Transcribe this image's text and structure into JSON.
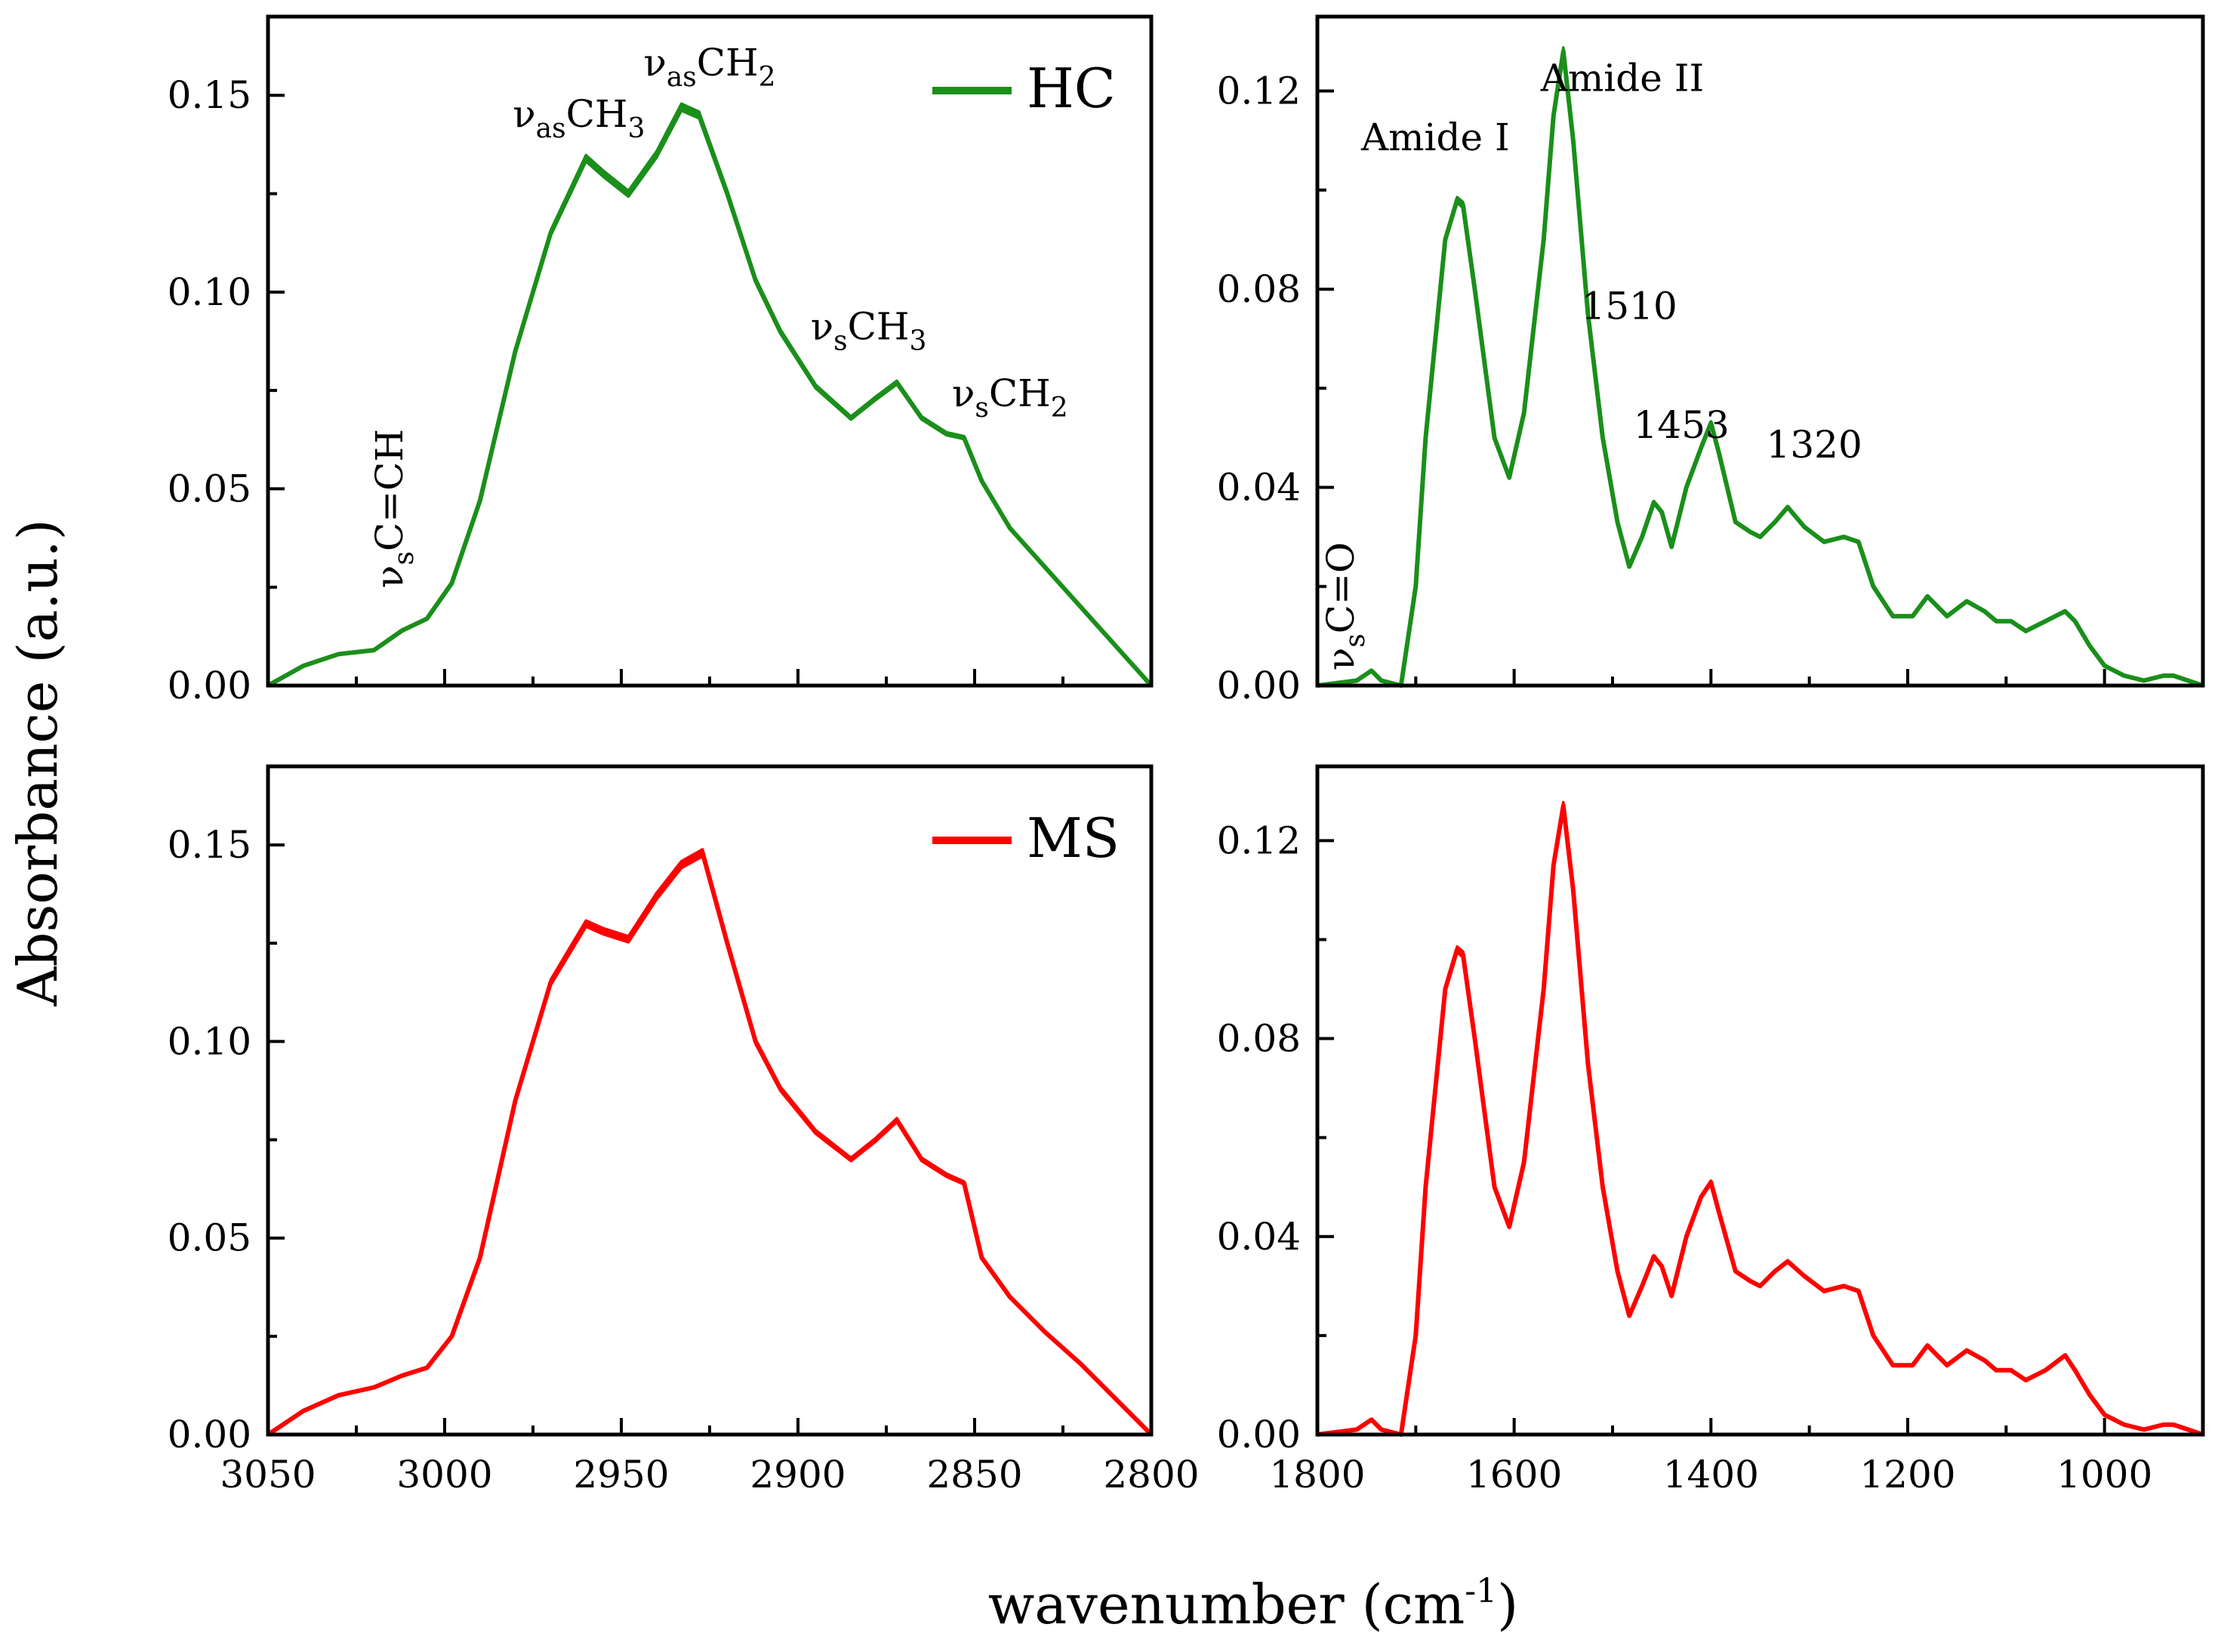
{
  "figure": {
    "ylabel": "Absorbance (a.u.)",
    "xlabel_main": "wavenumber (cm",
    "xlabel_sup": "-1",
    "xlabel_close": ")"
  },
  "colors": {
    "HC": "#1a8f1a",
    "MS": "#ff0000"
  },
  "chart_data": [
    {
      "id": "hc-ch",
      "type": "line",
      "title": "",
      "xlim": [
        3050,
        2800
      ],
      "ylim": [
        0,
        0.17
      ],
      "xticks": [
        3050,
        3000,
        2950,
        2900,
        2850,
        2800
      ],
      "yticks": [
        0.0,
        0.05,
        0.1,
        0.15
      ],
      "ytick_labels": [
        "0.00",
        "0.05",
        "0.10",
        "0.15"
      ],
      "show_xtick_labels": false,
      "legend": {
        "label": "HC",
        "position": "top-right"
      },
      "series": [
        {
          "name": "HC",
          "x": [
            3050,
            3040,
            3030,
            3020,
            3012,
            3005,
            2998,
            2990,
            2980,
            2970,
            2960,
            2955,
            2948,
            2940,
            2933,
            2928,
            2920,
            2912,
            2905,
            2895,
            2885,
            2878,
            2872,
            2865,
            2858,
            2853,
            2848,
            2840,
            2830,
            2820,
            2810,
            2800
          ],
          "y": [
            0.0,
            0.005,
            0.008,
            0.009,
            0.014,
            0.017,
            0.026,
            0.047,
            0.085,
            0.115,
            0.134,
            0.13,
            0.125,
            0.135,
            0.147,
            0.145,
            0.125,
            0.103,
            0.09,
            0.076,
            0.068,
            0.073,
            0.077,
            0.068,
            0.064,
            0.063,
            0.052,
            0.04,
            0.03,
            0.02,
            0.01,
            0.0
          ]
        }
      ],
      "annotations": [
        {
          "base": "ν",
          "sub": "s",
          "rest": "C=CH",
          "x": 3012,
          "y": 0.045,
          "rotated": true
        },
        {
          "base": "ν",
          "sub": "as",
          "rest": "CH",
          "sub2": "3",
          "x": 2962,
          "y": 0.142,
          "rotated": false
        },
        {
          "base": "ν",
          "sub": "as",
          "rest": "CH",
          "sub2": "2",
          "x": 2925,
          "y": 0.155,
          "rotated": false
        },
        {
          "base": "ν",
          "sub": "s",
          "rest": "CH",
          "sub2": "3",
          "x": 2880,
          "y": 0.088,
          "rotated": false
        },
        {
          "base": "ν",
          "sub": "s",
          "rest": "CH",
          "sub2": "2",
          "x": 2840,
          "y": 0.071,
          "rotated": false
        }
      ]
    },
    {
      "id": "hc-amide",
      "type": "line",
      "title": "",
      "xlim": [
        1800,
        900
      ],
      "ylim": [
        0,
        0.135
      ],
      "xticks": [
        1800,
        1600,
        1400,
        1200,
        1000
      ],
      "yticks": [
        0.0,
        0.04,
        0.08,
        0.12
      ],
      "ytick_labels": [
        "0.00",
        "0.04",
        "0.08",
        "0.12"
      ],
      "show_xtick_labels": false,
      "series": [
        {
          "name": "HC",
          "x": [
            1800,
            1760,
            1745,
            1735,
            1715,
            1700,
            1690,
            1670,
            1658,
            1652,
            1640,
            1620,
            1605,
            1590,
            1570,
            1560,
            1550,
            1540,
            1525,
            1510,
            1495,
            1483,
            1470,
            1458,
            1450,
            1440,
            1425,
            1410,
            1400,
            1392,
            1375,
            1360,
            1350,
            1335,
            1322,
            1305,
            1285,
            1265,
            1250,
            1235,
            1215,
            1195,
            1180,
            1170,
            1160,
            1140,
            1122,
            1110,
            1095,
            1080,
            1060,
            1040,
            1030,
            1015,
            1000,
            980,
            960,
            940,
            930,
            900
          ],
          "y": [
            0.0,
            0.001,
            0.003,
            0.001,
            0.0,
            0.02,
            0.05,
            0.09,
            0.098,
            0.097,
            0.08,
            0.05,
            0.042,
            0.055,
            0.09,
            0.115,
            0.128,
            0.11,
            0.075,
            0.05,
            0.033,
            0.024,
            0.03,
            0.037,
            0.035,
            0.028,
            0.04,
            0.048,
            0.053,
            0.047,
            0.033,
            0.031,
            0.03,
            0.033,
            0.036,
            0.032,
            0.029,
            0.03,
            0.029,
            0.02,
            0.014,
            0.014,
            0.018,
            0.016,
            0.014,
            0.017,
            0.015,
            0.013,
            0.013,
            0.011,
            0.013,
            0.015,
            0.013,
            0.008,
            0.004,
            0.002,
            0.001,
            0.002,
            0.002,
            0.0
          ]
        }
      ],
      "annotations": [
        {
          "text": "Amide I",
          "x": 1680,
          "y": 0.108,
          "rotated": false
        },
        {
          "text": "Amide II",
          "x": 1490,
          "y": 0.12,
          "rotated": false
        },
        {
          "text": "1510",
          "x": 1483,
          "y": 0.074,
          "rotated": false
        },
        {
          "text": "1453",
          "x": 1430,
          "y": 0.05,
          "rotated": false
        },
        {
          "text": "1320",
          "x": 1295,
          "y": 0.046,
          "rotated": false
        },
        {
          "base": "ν",
          "sub": "s",
          "rest": "C=O",
          "x": 1763,
          "y": 0.016,
          "rotated": true
        }
      ]
    },
    {
      "id": "ms-ch",
      "type": "line",
      "title": "",
      "xlim": [
        3050,
        2800
      ],
      "ylim": [
        0,
        0.17
      ],
      "xticks": [
        3050,
        3000,
        2950,
        2900,
        2850,
        2800
      ],
      "xtick_labels": [
        "3050",
        "3000",
        "2950",
        "2900",
        "2850",
        "2800"
      ],
      "yticks": [
        0.0,
        0.05,
        0.1,
        0.15
      ],
      "ytick_labels": [
        "0.00",
        "0.05",
        "0.10",
        "0.15"
      ],
      "show_xtick_labels": true,
      "legend": {
        "label": "MS",
        "position": "top-right"
      },
      "series": [
        {
          "name": "MS",
          "x": [
            3050,
            3040,
            3030,
            3020,
            3012,
            3005,
            2998,
            2990,
            2980,
            2970,
            2960,
            2955,
            2948,
            2940,
            2933,
            2927,
            2920,
            2912,
            2905,
            2895,
            2885,
            2878,
            2872,
            2865,
            2858,
            2853,
            2848,
            2840,
            2830,
            2820,
            2810,
            2800
          ],
          "y": [
            0.0,
            0.006,
            0.01,
            0.012,
            0.015,
            0.017,
            0.025,
            0.045,
            0.085,
            0.115,
            0.13,
            0.128,
            0.126,
            0.137,
            0.145,
            0.148,
            0.125,
            0.1,
            0.088,
            0.077,
            0.07,
            0.075,
            0.08,
            0.07,
            0.066,
            0.064,
            0.045,
            0.035,
            0.026,
            0.018,
            0.009,
            0.0
          ]
        }
      ]
    },
    {
      "id": "ms-amide",
      "type": "line",
      "title": "",
      "xlim": [
        1800,
        900
      ],
      "ylim": [
        0,
        0.135
      ],
      "xticks": [
        1800,
        1600,
        1400,
        1200,
        1000
      ],
      "xtick_labels": [
        "1800",
        "1600",
        "1400",
        "1200",
        "1000"
      ],
      "yticks": [
        0.0,
        0.04,
        0.08,
        0.12
      ],
      "ytick_labels": [
        "0.00",
        "0.04",
        "0.08",
        "0.12"
      ],
      "show_xtick_labels": true,
      "series": [
        {
          "name": "MS",
          "x": [
            1800,
            1760,
            1745,
            1735,
            1715,
            1700,
            1690,
            1670,
            1658,
            1652,
            1640,
            1620,
            1605,
            1590,
            1570,
            1560,
            1550,
            1540,
            1525,
            1510,
            1495,
            1483,
            1470,
            1458,
            1450,
            1440,
            1425,
            1410,
            1400,
            1392,
            1375,
            1360,
            1350,
            1335,
            1322,
            1305,
            1285,
            1265,
            1250,
            1235,
            1215,
            1195,
            1180,
            1170,
            1160,
            1140,
            1122,
            1110,
            1095,
            1080,
            1060,
            1040,
            1030,
            1015,
            1000,
            980,
            960,
            940,
            930,
            900
          ],
          "y": [
            0.0,
            0.001,
            0.003,
            0.001,
            0.0,
            0.02,
            0.05,
            0.09,
            0.098,
            0.097,
            0.08,
            0.05,
            0.042,
            0.055,
            0.09,
            0.115,
            0.127,
            0.11,
            0.075,
            0.05,
            0.033,
            0.024,
            0.03,
            0.036,
            0.034,
            0.028,
            0.04,
            0.048,
            0.051,
            0.045,
            0.033,
            0.031,
            0.03,
            0.033,
            0.035,
            0.032,
            0.029,
            0.03,
            0.029,
            0.02,
            0.014,
            0.014,
            0.018,
            0.016,
            0.014,
            0.017,
            0.015,
            0.013,
            0.013,
            0.011,
            0.013,
            0.016,
            0.013,
            0.008,
            0.004,
            0.002,
            0.001,
            0.002,
            0.002,
            0.0
          ]
        }
      ]
    }
  ]
}
